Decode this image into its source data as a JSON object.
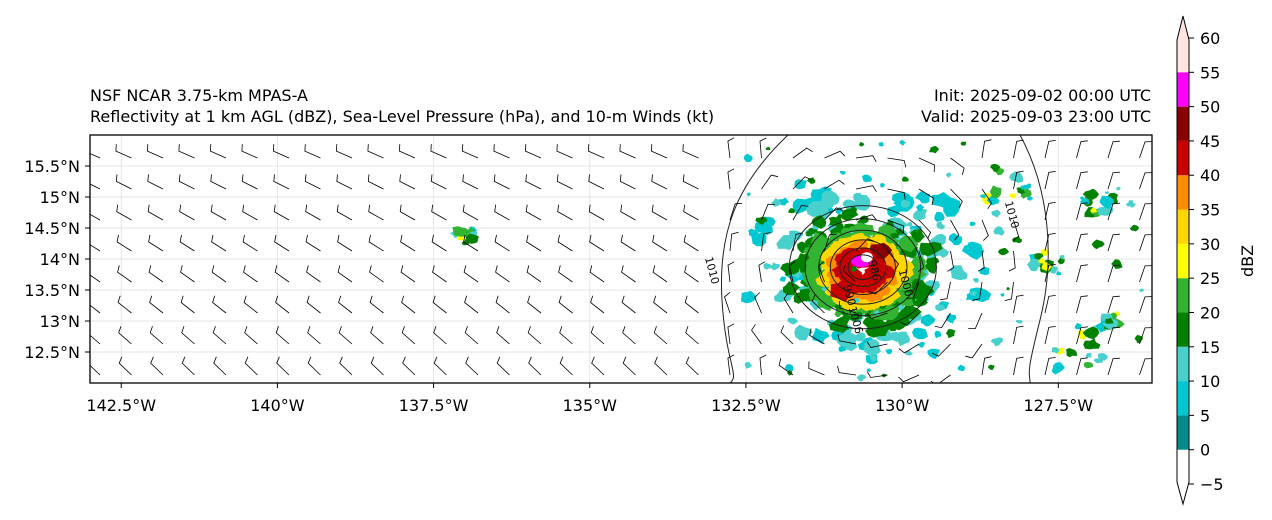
{
  "title": {
    "model": "NSF NCAR 3.75-km MPAS-A",
    "fields": "Reflectivity at 1 km AGL (dBZ), Sea-Level Pressure (hPa), and 10-m Winds (kt)",
    "init": "Init: 2025-09-02 00:00 UTC",
    "valid": "Valid: 2025-09-03 23:00 UTC"
  },
  "map": {
    "lon_range": [
      -143.0,
      -126.0
    ],
    "lat_range": [
      12.0,
      16.0
    ],
    "lon_ticks": [
      {
        "value": -142.5,
        "label": "142.5°W"
      },
      {
        "value": -140.0,
        "label": "140°W"
      },
      {
        "value": -137.5,
        "label": "137.5°W"
      },
      {
        "value": -135.0,
        "label": "135°W"
      },
      {
        "value": -132.5,
        "label": "132.5°W"
      },
      {
        "value": -130.0,
        "label": "130°W"
      },
      {
        "value": -127.5,
        "label": "127.5°W"
      }
    ],
    "lat_ticks": [
      {
        "value": 12.5,
        "label": "12.5°N"
      },
      {
        "value": 13.0,
        "label": "13°N"
      },
      {
        "value": 13.5,
        "label": "13.5°N"
      },
      {
        "value": 14.0,
        "label": "14°N"
      },
      {
        "value": 14.5,
        "label": "14.5°N"
      },
      {
        "value": 15.0,
        "label": "15°N"
      },
      {
        "value": 15.5,
        "label": "15.5°N"
      }
    ],
    "storm_center": {
      "lon": -130.5,
      "lat": 13.9
    },
    "pressure_labels": [
      {
        "text": "1010",
        "lon": -133.1,
        "lat": 13.8
      },
      {
        "text": "1010",
        "lon": -128.3,
        "lat": 14.7
      },
      {
        "text": "986",
        "lon": -130.5,
        "lat": 13.8
      },
      {
        "text": "990",
        "lon": -130.9,
        "lat": 13.4
      },
      {
        "text": "1000",
        "lon": -130.0,
        "lat": 13.6
      },
      {
        "text": "1006",
        "lon": -130.8,
        "lat": 13.0
      }
    ]
  },
  "colorbar": {
    "label": "dBZ",
    "ticks": [
      "−5",
      "0",
      "5",
      "10",
      "15",
      "20",
      "25",
      "30",
      "35",
      "40",
      "45",
      "50",
      "55",
      "60"
    ],
    "colors": [
      "#ffffff",
      "#008b8b",
      "#00c8d0",
      "#48d1cc",
      "#008200",
      "#32b432",
      "#ffff00",
      "#ffd700",
      "#ff8c00",
      "#c80000",
      "#8b0000",
      "#ff00ff",
      "#ffe4e1"
    ]
  }
}
